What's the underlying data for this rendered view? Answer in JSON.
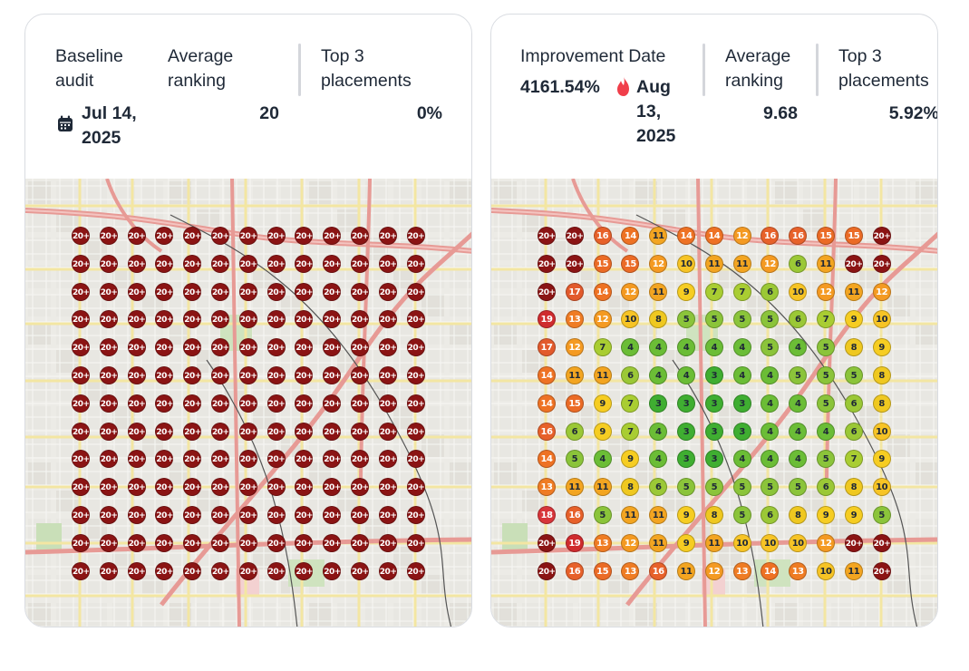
{
  "baseline": {
    "label_line1": "Baseline",
    "label_line2": "audit",
    "date_line1": "Jul 14,",
    "date_line2": "2025",
    "avg_label_line1": "Average",
    "avg_label_line2": "ranking",
    "avg_value": "20",
    "top3_label_line1": "Top 3",
    "top3_label_line2": "placements",
    "top3_value": "0%",
    "date_icon": "calendar-icon",
    "grid": [
      [
        "20+",
        "20+",
        "20+",
        "20+",
        "20+",
        "20+",
        "20+",
        "20+",
        "20+",
        "20+",
        "20+",
        "20+",
        "20+"
      ],
      [
        "20+",
        "20+",
        "20+",
        "20+",
        "20+",
        "20+",
        "20+",
        "20+",
        "20+",
        "20+",
        "20+",
        "20+",
        "20+"
      ],
      [
        "20+",
        "20+",
        "20+",
        "20+",
        "20+",
        "20+",
        "20+",
        "20+",
        "20+",
        "20+",
        "20+",
        "20+",
        "20+"
      ],
      [
        "20+",
        "20+",
        "20+",
        "20+",
        "20+",
        "20+",
        "20+",
        "20+",
        "20+",
        "20+",
        "20+",
        "20+",
        "20+"
      ],
      [
        "20+",
        "20+",
        "20+",
        "20+",
        "20+",
        "20+",
        "20+",
        "20+",
        "20+",
        "20+",
        "20+",
        "20+",
        "20+"
      ],
      [
        "20+",
        "20+",
        "20+",
        "20+",
        "20+",
        "20+",
        "20+",
        "20+",
        "20+",
        "20+",
        "20+",
        "20+",
        "20+"
      ],
      [
        "20+",
        "20+",
        "20+",
        "20+",
        "20+",
        "20+",
        "20+",
        "20+",
        "20+",
        "20+",
        "20+",
        "20+",
        "20+"
      ],
      [
        "20+",
        "20+",
        "20+",
        "20+",
        "20+",
        "20+",
        "20+",
        "20+",
        "20+",
        "20+",
        "20+",
        "20+",
        "20+"
      ],
      [
        "20+",
        "20+",
        "20+",
        "20+",
        "20+",
        "20+",
        "20+",
        "20+",
        "20+",
        "20+",
        "20+",
        "20+",
        "20+"
      ],
      [
        "20+",
        "20+",
        "20+",
        "20+",
        "20+",
        "20+",
        "20+",
        "20+",
        "20+",
        "20+",
        "20+",
        "20+",
        "20+"
      ],
      [
        "20+",
        "20+",
        "20+",
        "20+",
        "20+",
        "20+",
        "20+",
        "20+",
        "20+",
        "20+",
        "20+",
        "20+",
        "20+"
      ],
      [
        "20+",
        "20+",
        "20+",
        "20+",
        "20+",
        "20+",
        "20+",
        "20+",
        "20+",
        "20+",
        "20+",
        "20+",
        "20+"
      ],
      [
        "20+",
        "20+",
        "20+",
        "20+",
        "20+",
        "20+",
        "20+",
        "20+",
        "20+",
        "20+",
        "20+",
        "20+",
        "20+"
      ]
    ]
  },
  "improvement": {
    "label": "Improvement Date",
    "percent": "4161.54%",
    "date_line1": "Aug",
    "date_line2": "13,",
    "date_line3": "2025",
    "avg_label_line1": "Average",
    "avg_label_line2": "ranking",
    "avg_value": "9.68",
    "top3_label_line1": "Top 3",
    "top3_label_line2": "placements",
    "top3_value": "5.92%",
    "percent_icon": "flame-icon",
    "grid": [
      [
        "20+",
        "20+",
        "16",
        "14",
        "11",
        "14",
        "14",
        "12",
        "16",
        "16",
        "15",
        "15",
        "20+"
      ],
      [
        "20+",
        "20+",
        "15",
        "15",
        "12",
        "10",
        "11",
        "11",
        "12",
        "6",
        "11",
        "20+",
        "20+"
      ],
      [
        "20+",
        "17",
        "14",
        "12",
        "11",
        "9",
        "7",
        "7",
        "6",
        "10",
        "12",
        "11",
        "12"
      ],
      [
        "19",
        "13",
        "12",
        "10",
        "8",
        "5",
        "5",
        "5",
        "5",
        "6",
        "7",
        "9",
        "10"
      ],
      [
        "17",
        "12",
        "7",
        "4",
        "4",
        "4",
        "4",
        "4",
        "5",
        "4",
        "5",
        "8",
        "9"
      ],
      [
        "14",
        "11",
        "11",
        "6",
        "4",
        "4",
        "3",
        "4",
        "4",
        "5",
        "5",
        "5",
        "8"
      ],
      [
        "14",
        "15",
        "9",
        "7",
        "3",
        "3",
        "3",
        "3",
        "4",
        "4",
        "5",
        "6",
        "8"
      ],
      [
        "16",
        "6",
        "9",
        "7",
        "4",
        "3",
        "3",
        "3",
        "4",
        "4",
        "4",
        "6",
        "10"
      ],
      [
        "14",
        "5",
        "4",
        "9",
        "4",
        "3",
        "3",
        "4",
        "4",
        "4",
        "5",
        "7",
        "9"
      ],
      [
        "13",
        "11",
        "11",
        "8",
        "6",
        "5",
        "5",
        "5",
        "5",
        "5",
        "6",
        "8",
        "10"
      ],
      [
        "18",
        "16",
        "5",
        "11",
        "11",
        "9",
        "8",
        "5",
        "6",
        "8",
        "9",
        "9",
        "5"
      ],
      [
        "20+",
        "19",
        "13",
        "12",
        "11",
        "9",
        "11",
        "10",
        "10",
        "10",
        "12",
        "20+",
        "20+"
      ],
      [
        "20+",
        "16",
        "15",
        "13",
        "16",
        "11",
        "12",
        "13",
        "14",
        "13",
        "10",
        "11",
        "20+"
      ]
    ]
  },
  "marker_colors": {
    "r20": "#8b1414",
    "r19": "#cf2b2e",
    "r18": "#d7353a",
    "r17": "#e25a2c",
    "r16": "#e7612a",
    "r15": "#eb6b26",
    "r14": "#ee7224",
    "r13": "#ef7c24",
    "r12": "#f49a22",
    "r11": "#f3a521",
    "r10": "#f7c425",
    "r9": "#f6cd22",
    "r8": "#efc820",
    "r7": "#a9cd32",
    "r6": "#9bc836",
    "r5": "#8bc43a",
    "r4": "#6bbd36",
    "r3": "#3fae31"
  }
}
